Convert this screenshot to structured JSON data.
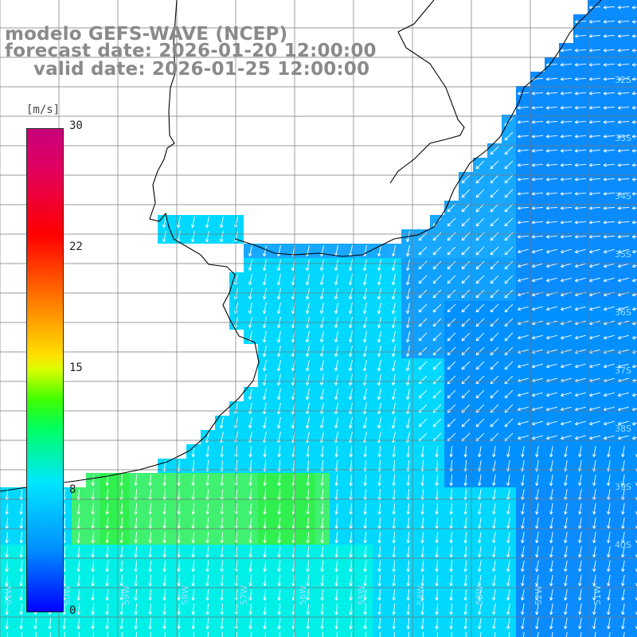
{
  "title": {
    "model": "modelo GEFS-WAVE (NCEP)",
    "forecast": "forecast date: 2026-01-20 12:00:00",
    "valid": "valid date: 2026-01-25 12:00:00"
  },
  "colorbar": {
    "unit": "[m/s]",
    "ticks": [
      "30",
      "22",
      "15",
      "8",
      "0"
    ],
    "min": 0,
    "max": 30
  },
  "lat_labels": [
    "32S",
    "33S",
    "34S",
    "35S",
    "36S",
    "37S",
    "38S",
    "39S",
    "40S"
  ],
  "lon_labels": [
    "61W",
    "60W",
    "59W",
    "58W",
    "57W",
    "56W",
    "55W",
    "54W",
    "53W",
    "52W",
    "51W"
  ],
  "colors": {
    "land": "#ffffff",
    "grid": "#777777",
    "coast": "#000000",
    "arrow": "#ffffff",
    "title": "#8a8a8a"
  },
  "field_description_colors": [
    "#00e6ff",
    "#00b4ff",
    "#0078ff",
    "#00ff60",
    "#40f040"
  ]
}
